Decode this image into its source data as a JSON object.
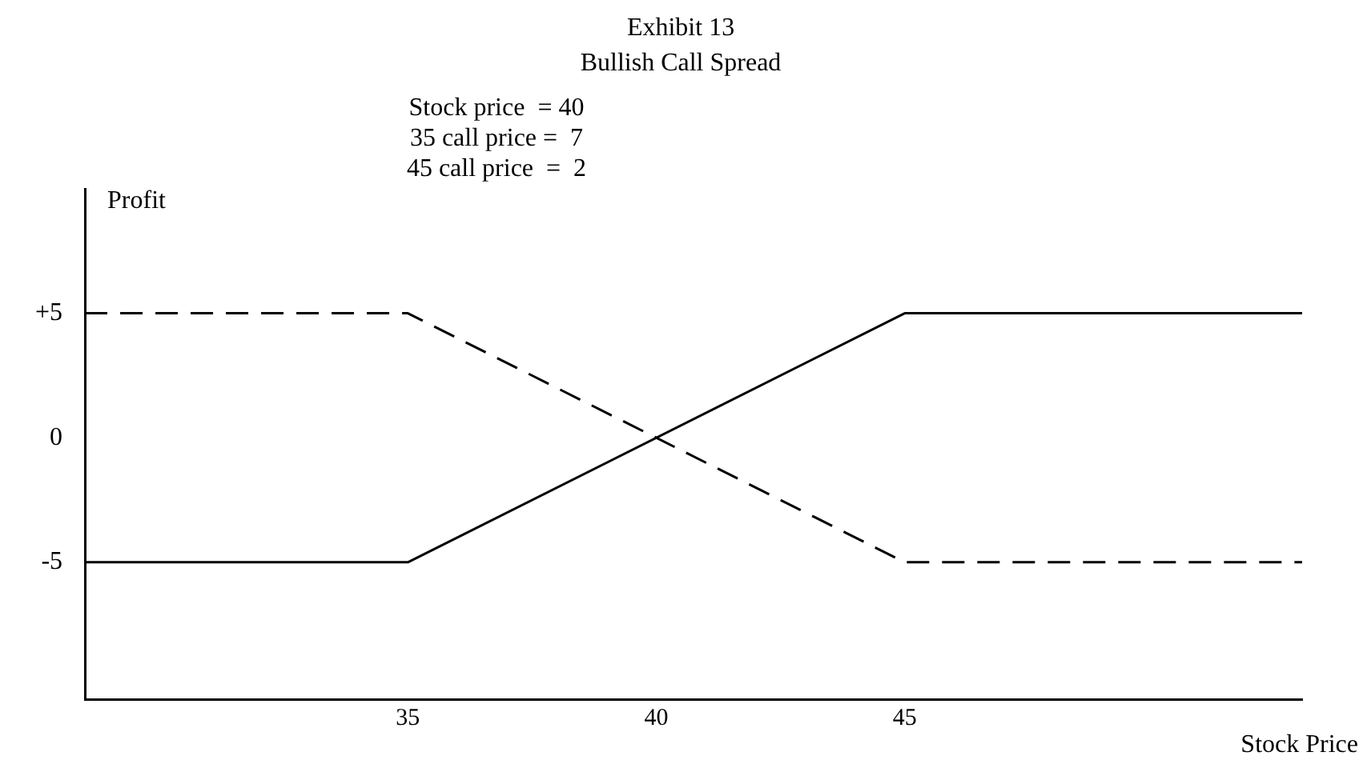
{
  "chart_data": {
    "type": "line",
    "title": "Exhibit 13",
    "subtitle": "Bullish Call Spread",
    "xlabel": "Stock Price",
    "ylabel": "Profit",
    "annotations": [
      "Stock price  = 40",
      "35 call price =  7",
      "45 call price  =  2"
    ],
    "x": [
      28.5,
      35,
      45,
      53
    ],
    "series": [
      {
        "color": "#000000",
        "line_style": "solid",
        "values": [
          -5,
          -5,
          5,
          5
        ]
      },
      {
        "color": "#000000",
        "line_style": "dashed",
        "values": [
          5,
          5,
          -5,
          -5
        ]
      }
    ],
    "xlim": [
      28.5,
      53
    ],
    "ylim": [
      -10.5,
      10
    ],
    "xticks": [
      35,
      40,
      45
    ],
    "yticks": [
      {
        "value": 5,
        "label": "+5"
      },
      0,
      -5
    ],
    "grid": false,
    "legend": false,
    "marker": "none"
  }
}
